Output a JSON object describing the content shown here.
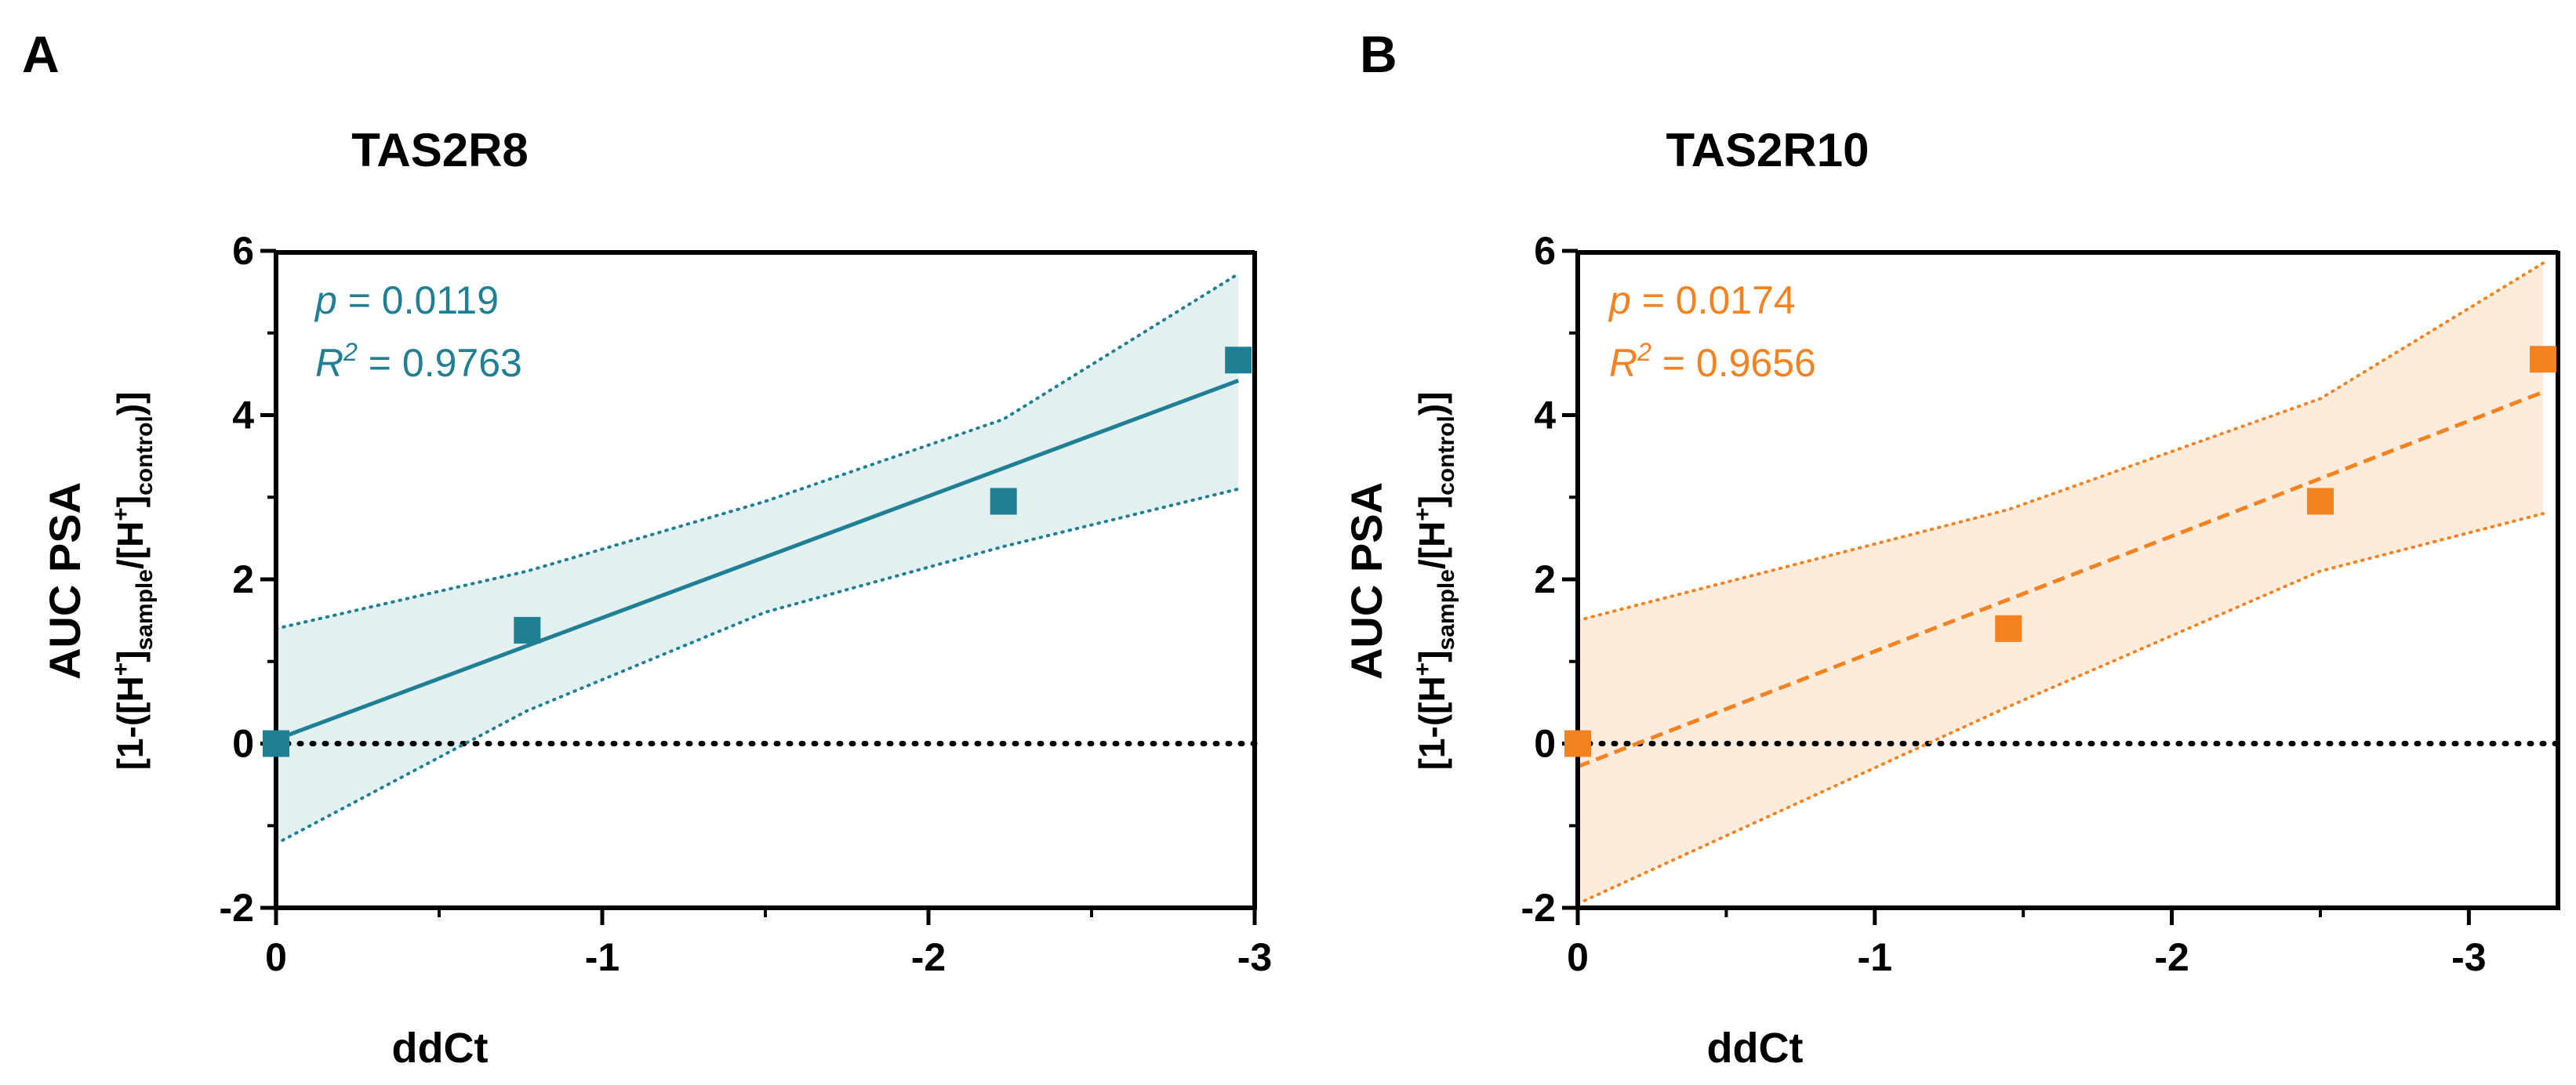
{
  "chart_data": [
    {
      "panel_label": "A",
      "type": "scatter",
      "title": "TAS2R8",
      "xlabel": "ddCt",
      "ylabel": "AUC PSA",
      "ylabel_sub": {
        "p1": "[1-([H",
        "sup1": "+",
        "p2": "]",
        "sub1": "sample",
        "p3": "/[H",
        "sup2": "+",
        "p4": "]",
        "sub2": "control",
        "p5": ")]"
      },
      "xlim": [
        0,
        -3
      ],
      "ylim": [
        -2,
        6
      ],
      "x_ticks": [
        0,
        -1,
        -2,
        -3
      ],
      "x_tick_labels": [
        "0",
        "-1",
        "-2",
        "-3"
      ],
      "y_ticks": [
        -2,
        0,
        2,
        4,
        6
      ],
      "y_tick_labels": [
        "-2",
        "0",
        "2",
        "4",
        "6"
      ],
      "color": "#1f7f94",
      "band_color": "#e3f0f0",
      "points": {
        "x": [
          0,
          -0.77,
          -2.23,
          -2.95
        ],
        "y": [
          0,
          1.38,
          2.95,
          4.67
        ]
      },
      "fit": {
        "x": [
          0,
          -2.95
        ],
        "y": [
          0.05,
          4.42
        ],
        "style": "solid"
      },
      "ci_upper": {
        "x": [
          0,
          -0.77,
          -1.5,
          -2.23,
          -2.95
        ],
        "y": [
          1.4,
          2.1,
          2.95,
          3.95,
          5.72
        ]
      },
      "ci_lower": {
        "x": [
          0,
          -0.77,
          -1.5,
          -2.23,
          -2.95
        ],
        "y": [
          -1.22,
          0.4,
          1.6,
          2.4,
          3.1
        ]
      },
      "annotation": {
        "p_symbol": "p",
        "p_text": " = 0.0119",
        "r_symbol": "R",
        "r_sup": "2",
        "r_text": " = 0.9763"
      }
    },
    {
      "panel_label": "B",
      "type": "scatter",
      "title": "TAS2R10",
      "xlabel": "ddCt",
      "ylabel": "AUC PSA",
      "ylabel_sub": {
        "p1": "[1-([H",
        "sup1": "+",
        "p2": "]",
        "sub1": "sample",
        "p3": "/[H",
        "sup2": "+",
        "p4": "]",
        "sub2": "control",
        "p5": ")]"
      },
      "xlim": [
        0,
        -3.3
      ],
      "ylim": [
        -2,
        6
      ],
      "x_ticks": [
        0,
        -1,
        -2,
        -3
      ],
      "x_tick_labels": [
        "0",
        "-1",
        "-2",
        "-3"
      ],
      "y_ticks": [
        -2,
        0,
        2,
        4,
        6
      ],
      "y_tick_labels": [
        "-2",
        "0",
        "2",
        "4",
        "6"
      ],
      "color": "#f58220",
      "band_color": "#fdecdb",
      "points": {
        "x": [
          0,
          -1.45,
          -2.5,
          -3.25
        ],
        "y": [
          0,
          1.4,
          2.95,
          4.68
        ]
      },
      "fit": {
        "x": [
          0,
          -3.25
        ],
        "y": [
          -0.28,
          4.28
        ],
        "style": "dashed"
      },
      "ci_upper": {
        "x": [
          0,
          -1.45,
          -2.5,
          -3.25
        ],
        "y": [
          1.5,
          2.85,
          4.2,
          5.85
        ]
      },
      "ci_lower": {
        "x": [
          0,
          -1.45,
          -2.5,
          -3.25
        ],
        "y": [
          -1.95,
          0.45,
          2.1,
          2.8
        ]
      },
      "annotation": {
        "p_symbol": "p",
        "p_text": " = 0.0174",
        "r_symbol": "R",
        "r_sup": "2",
        "r_text": " = 0.9656"
      }
    }
  ]
}
